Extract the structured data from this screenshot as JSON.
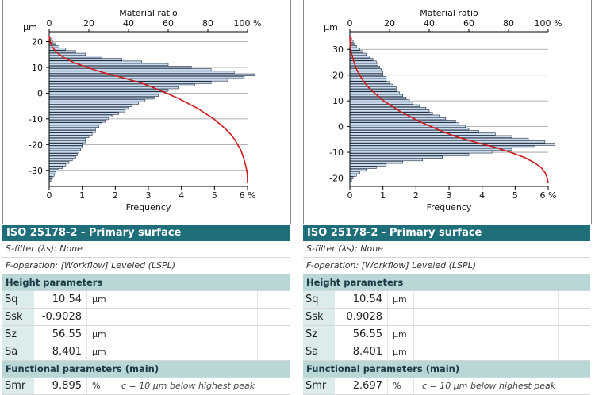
{
  "panels": [
    {
      "chart_data": {
        "type": "bar",
        "orientation": "horizontal",
        "top_axis_title": "Material ratio",
        "top_axis_unit": "%",
        "top_ticks": [
          "0",
          "20",
          "40",
          "60",
          "80",
          "100 %"
        ],
        "bottom_axis_title": "Frequency",
        "bottom_ticks": [
          "0",
          "1",
          "2",
          "3",
          "4",
          "5",
          "6 %"
        ],
        "y_unit": "µm",
        "y_ticks": [
          20,
          10,
          0,
          -10,
          -20,
          -30
        ],
        "ylim": [
          -35,
          22
        ],
        "xlim_frequency": [
          0,
          6
        ],
        "xlim_ratio": [
          0,
          100
        ],
        "bar_color": "#c9dcef",
        "curve_color": "#d0191b",
        "bins": [
          {
            "y": 21,
            "f": 0.05
          },
          {
            "y": 20,
            "f": 0.1
          },
          {
            "y": 19,
            "f": 0.2
          },
          {
            "y": 18,
            "f": 0.3
          },
          {
            "y": 17,
            "f": 0.5
          },
          {
            "y": 16,
            "f": 0.8
          },
          {
            "y": 15,
            "f": 1.1
          },
          {
            "y": 14,
            "f": 1.6
          },
          {
            "y": 13,
            "f": 2.2
          },
          {
            "y": 12,
            "f": 2.8
          },
          {
            "y": 11,
            "f": 3.6
          },
          {
            "y": 10,
            "f": 4.3
          },
          {
            "y": 9,
            "f": 4.9
          },
          {
            "y": 8,
            "f": 5.6
          },
          {
            "y": 7,
            "f": 6.2
          },
          {
            "y": 6,
            "f": 5.9
          },
          {
            "y": 5,
            "f": 5.4
          },
          {
            "y": 4,
            "f": 4.9
          },
          {
            "y": 3,
            "f": 4.4
          },
          {
            "y": 2,
            "f": 3.9
          },
          {
            "y": 1,
            "f": 3.6
          },
          {
            "y": 0,
            "f": 3.5
          },
          {
            "y": -1,
            "f": 3.3
          },
          {
            "y": -2,
            "f": 3.2
          },
          {
            "y": -3,
            "f": 2.9
          },
          {
            "y": -4,
            "f": 2.7
          },
          {
            "y": -5,
            "f": 2.5
          },
          {
            "y": -6,
            "f": 2.4
          },
          {
            "y": -7,
            "f": 2.3
          },
          {
            "y": -8,
            "f": 2.1
          },
          {
            "y": -9,
            "f": 1.9
          },
          {
            "y": -10,
            "f": 1.8
          },
          {
            "y": -11,
            "f": 1.7
          },
          {
            "y": -12,
            "f": 1.6
          },
          {
            "y": -13,
            "f": 1.5
          },
          {
            "y": -14,
            "f": 1.4
          },
          {
            "y": -15,
            "f": 1.4
          },
          {
            "y": -16,
            "f": 1.3
          },
          {
            "y": -17,
            "f": 1.2
          },
          {
            "y": -18,
            "f": 1.1
          },
          {
            "y": -19,
            "f": 1.1
          },
          {
            "y": -20,
            "f": 1.0
          },
          {
            "y": -21,
            "f": 1.0
          },
          {
            "y": -22,
            "f": 0.95
          },
          {
            "y": -23,
            "f": 0.9
          },
          {
            "y": -24,
            "f": 0.85
          },
          {
            "y": -25,
            "f": 0.8
          },
          {
            "y": -26,
            "f": 0.7
          },
          {
            "y": -27,
            "f": 0.6
          },
          {
            "y": -28,
            "f": 0.5
          },
          {
            "y": -29,
            "f": 0.4
          },
          {
            "y": -30,
            "f": 0.3
          },
          {
            "y": -31,
            "f": 0.2
          },
          {
            "y": -32,
            "f": 0.15
          },
          {
            "y": -33,
            "f": 0.1
          },
          {
            "y": -34,
            "f": 0.05
          }
        ],
        "curve": [
          {
            "y": 22,
            "r": 0
          },
          {
            "y": 20,
            "r": 0.5
          },
          {
            "y": 18,
            "r": 1.5
          },
          {
            "y": 16,
            "r": 3.5
          },
          {
            "y": 14,
            "r": 7
          },
          {
            "y": 12,
            "r": 12
          },
          {
            "y": 10,
            "r": 19
          },
          {
            "y": 8,
            "r": 27
          },
          {
            "y": 6,
            "r": 37
          },
          {
            "y": 4,
            "r": 46
          },
          {
            "y": 2,
            "r": 53
          },
          {
            "y": 0,
            "r": 59
          },
          {
            "y": -2,
            "r": 65
          },
          {
            "y": -4,
            "r": 70
          },
          {
            "y": -6,
            "r": 75
          },
          {
            "y": -8,
            "r": 79
          },
          {
            "y": -10,
            "r": 83
          },
          {
            "y": -12,
            "r": 86
          },
          {
            "y": -14,
            "r": 89
          },
          {
            "y": -16,
            "r": 91.5
          },
          {
            "y": -18,
            "r": 93.5
          },
          {
            "y": -20,
            "r": 95
          },
          {
            "y": -22,
            "r": 96.5
          },
          {
            "y": -24,
            "r": 97.5
          },
          {
            "y": -26,
            "r": 98.3
          },
          {
            "y": -28,
            "r": 99
          },
          {
            "y": -30,
            "r": 99.6
          },
          {
            "y": -32,
            "r": 99.9
          },
          {
            "y": -35,
            "r": 100
          }
        ]
      },
      "table": {
        "title": "ISO 25178-2 - Primary surface",
        "s_filter": "S-filter (λs): None",
        "f_operation": "F-operation: [Workflow] Leveled (LSPL)",
        "height_section": "Height parameters",
        "height_params": [
          {
            "name": "Sq",
            "value": "10.54",
            "unit": "µm"
          },
          {
            "name": "Ssk",
            "value": "-0.9028",
            "unit": ""
          },
          {
            "name": "Sz",
            "value": "56.55",
            "unit": "µm"
          },
          {
            "name": "Sa",
            "value": "8.401",
            "unit": "µm"
          }
        ],
        "functional_section": "Functional parameters (main)",
        "smr": {
          "name": "Smr",
          "value": "9.895",
          "unit": "%",
          "note": "c = 10 µm below highest peak"
        }
      }
    },
    {
      "chart_data": {
        "type": "bar",
        "orientation": "horizontal",
        "top_axis_title": "Material ratio",
        "top_axis_unit": "%",
        "top_ticks": [
          "0",
          "20",
          "40",
          "60",
          "80",
          "100 %"
        ],
        "bottom_axis_title": "Frequency",
        "bottom_ticks": [
          "0",
          "1",
          "2",
          "3",
          "4",
          "5",
          "6 %"
        ],
        "y_unit": "µm",
        "y_ticks": [
          30,
          20,
          10,
          0,
          -10,
          -20
        ],
        "ylim": [
          -22,
          35
        ],
        "xlim_frequency": [
          0,
          6
        ],
        "xlim_ratio": [
          0,
          100
        ],
        "bar_color": "#c9dcef",
        "curve_color": "#d0191b",
        "bins": [
          {
            "y": 34,
            "f": 0.05
          },
          {
            "y": 33,
            "f": 0.1
          },
          {
            "y": 32,
            "f": 0.15
          },
          {
            "y": 31,
            "f": 0.2
          },
          {
            "y": 30,
            "f": 0.3
          },
          {
            "y": 29,
            "f": 0.4
          },
          {
            "y": 28,
            "f": 0.5
          },
          {
            "y": 27,
            "f": 0.6
          },
          {
            "y": 26,
            "f": 0.7
          },
          {
            "y": 25,
            "f": 0.8
          },
          {
            "y": 24,
            "f": 0.85
          },
          {
            "y": 23,
            "f": 0.9
          },
          {
            "y": 22,
            "f": 0.95
          },
          {
            "y": 21,
            "f": 1.0
          },
          {
            "y": 20,
            "f": 1.0
          },
          {
            "y": 19,
            "f": 1.1
          },
          {
            "y": 18,
            "f": 1.1
          },
          {
            "y": 17,
            "f": 1.2
          },
          {
            "y": 16,
            "f": 1.3
          },
          {
            "y": 15,
            "f": 1.4
          },
          {
            "y": 14,
            "f": 1.4
          },
          {
            "y": 13,
            "f": 1.5
          },
          {
            "y": 12,
            "f": 1.6
          },
          {
            "y": 11,
            "f": 1.7
          },
          {
            "y": 10,
            "f": 1.8
          },
          {
            "y": 9,
            "f": 1.9
          },
          {
            "y": 8,
            "f": 2.1
          },
          {
            "y": 7,
            "f": 2.3
          },
          {
            "y": 6,
            "f": 2.4
          },
          {
            "y": 5,
            "f": 2.5
          },
          {
            "y": 4,
            "f": 2.7
          },
          {
            "y": 3,
            "f": 2.9
          },
          {
            "y": 2,
            "f": 3.2
          },
          {
            "y": 1,
            "f": 3.3
          },
          {
            "y": 0,
            "f": 3.5
          },
          {
            "y": -1,
            "f": 3.6
          },
          {
            "y": -2,
            "f": 3.9
          },
          {
            "y": -3,
            "f": 4.4
          },
          {
            "y": -4,
            "f": 4.9
          },
          {
            "y": -5,
            "f": 5.4
          },
          {
            "y": -6,
            "f": 5.9
          },
          {
            "y": -7,
            "f": 6.2
          },
          {
            "y": -8,
            "f": 5.6
          },
          {
            "y": -9,
            "f": 4.9
          },
          {
            "y": -10,
            "f": 4.3
          },
          {
            "y": -11,
            "f": 3.6
          },
          {
            "y": -12,
            "f": 2.8
          },
          {
            "y": -13,
            "f": 2.2
          },
          {
            "y": -14,
            "f": 1.6
          },
          {
            "y": -15,
            "f": 1.1
          },
          {
            "y": -16,
            "f": 0.8
          },
          {
            "y": -17,
            "f": 0.5
          },
          {
            "y": -18,
            "f": 0.3
          },
          {
            "y": -19,
            "f": 0.2
          },
          {
            "y": -20,
            "f": 0.1
          },
          {
            "y": -21,
            "f": 0.05
          }
        ],
        "curve": [
          {
            "y": 35,
            "r": 0
          },
          {
            "y": 32,
            "r": 0.1
          },
          {
            "y": 30,
            "r": 0.4
          },
          {
            "y": 28,
            "r": 1
          },
          {
            "y": 26,
            "r": 1.7
          },
          {
            "y": 24,
            "r": 2.5
          },
          {
            "y": 22,
            "r": 3.5
          },
          {
            "y": 20,
            "r": 5
          },
          {
            "y": 18,
            "r": 6.5
          },
          {
            "y": 16,
            "r": 8.5
          },
          {
            "y": 14,
            "r": 11
          },
          {
            "y": 12,
            "r": 14
          },
          {
            "y": 10,
            "r": 17
          },
          {
            "y": 8,
            "r": 21
          },
          {
            "y": 6,
            "r": 25
          },
          {
            "y": 4,
            "r": 30
          },
          {
            "y": 2,
            "r": 35
          },
          {
            "y": 0,
            "r": 41
          },
          {
            "y": -2,
            "r": 47
          },
          {
            "y": -4,
            "r": 54
          },
          {
            "y": -6,
            "r": 63
          },
          {
            "y": -8,
            "r": 73
          },
          {
            "y": -10,
            "r": 81
          },
          {
            "y": -12,
            "r": 88
          },
          {
            "y": -14,
            "r": 93
          },
          {
            "y": -16,
            "r": 96.5
          },
          {
            "y": -18,
            "r": 98.5
          },
          {
            "y": -20,
            "r": 99.5
          },
          {
            "y": -22,
            "r": 100
          }
        ]
      },
      "table": {
        "title": "ISO 25178-2 - Primary surface",
        "s_filter": "S-filter (λs): None",
        "f_operation": "F-operation: [Workflow] Leveled (LSPL)",
        "height_section": "Height parameters",
        "height_params": [
          {
            "name": "Sq",
            "value": "10.54",
            "unit": "µm"
          },
          {
            "name": "Ssk",
            "value": "0.9028",
            "unit": ""
          },
          {
            "name": "Sz",
            "value": "56.55",
            "unit": "µm"
          },
          {
            "name": "Sa",
            "value": "8.401",
            "unit": "µm"
          }
        ],
        "functional_section": "Functional parameters (main)",
        "smr": {
          "name": "Smr",
          "value": "2.697",
          "unit": "%",
          "note": "c = 10 µm below highest peak"
        }
      }
    }
  ]
}
